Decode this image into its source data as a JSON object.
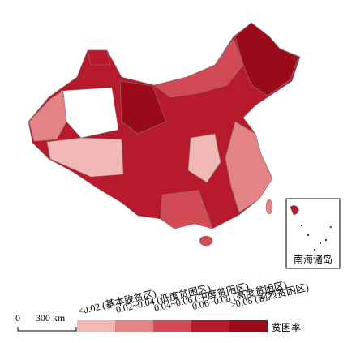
{
  "legend": {
    "title": "贫困率",
    "items": [
      {
        "label": "<0.02 (基本脱贫区)",
        "color": "#f2b8b5"
      },
      {
        "label": "0.02~0.04 (低度贫困区)",
        "color": "#e48385"
      },
      {
        "label": "0.04~0.06 (中度贫困区)",
        "color": "#d24a55"
      },
      {
        "label": "0.06~0.08 (高度贫困区)",
        "color": "#b71a2d"
      },
      {
        "label": ">0.08 (剧烈贫困区)",
        "color": "#9b0a1a"
      }
    ]
  },
  "scale_bar": {
    "start": "0",
    "end": "300 km"
  },
  "inset": {
    "label": "南海诸岛"
  }
}
